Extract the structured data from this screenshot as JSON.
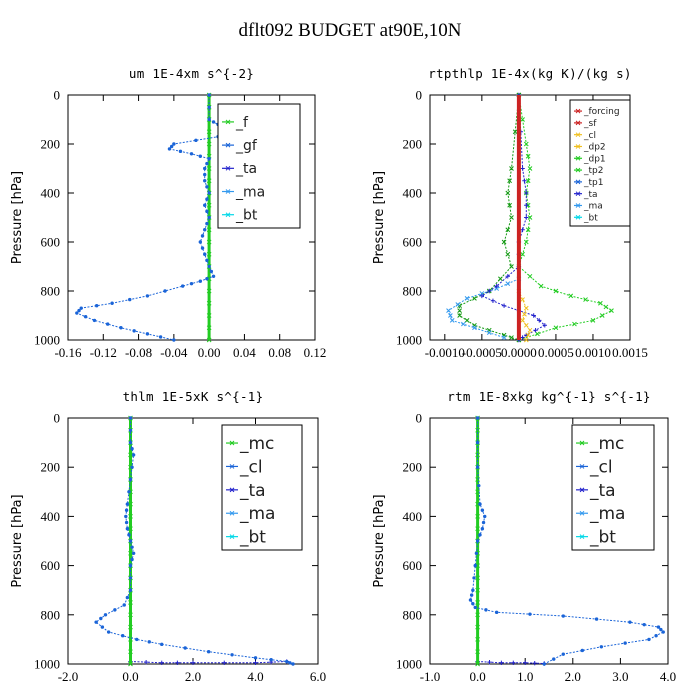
{
  "figure_title": "dflt092  BUDGET at90E,10N",
  "colors": {
    "blue": "#1a64d8",
    "green": "#22cc22",
    "red": "#cc2222",
    "cyan": "#00d8e8",
    "yellow": "#f0c020",
    "purple": "#2222cc",
    "ltblue": "#3399ee",
    "dkgreen": "#119911"
  },
  "chart_data": [
    {
      "type": "line",
      "title": "um   1E-4xm s^{-2}",
      "ylabel": "Pressure [hPa]",
      "xlim": [
        -0.16,
        0.12
      ],
      "ylim": [
        1000,
        0
      ],
      "xticks": [
        -0.16,
        -0.12,
        -0.08,
        -0.04,
        0.0,
        0.04,
        0.08,
        0.12
      ],
      "xtick_labels": [
        "-0.16",
        "-0.12",
        "-0.08",
        "-0.04",
        "0.00",
        "0.04",
        "0.08",
        "0.12"
      ],
      "yticks": [
        0,
        200,
        400,
        600,
        800,
        1000
      ],
      "ytick_labels": [
        "0",
        "200",
        "400",
        "600",
        "800",
        "1000"
      ],
      "legend_font": 14,
      "legend": [
        {
          "label": "_f",
          "color": "green"
        },
        {
          "label": "_gf",
          "color": "blue"
        },
        {
          "label": "_ta",
          "color": "purple"
        },
        {
          "label": "_ma",
          "color": "ltblue"
        },
        {
          "label": "_bt",
          "color": "cyan"
        }
      ],
      "series": [
        {
          "color": "green",
          "width": 3,
          "marker": "x",
          "points": [
            [
              0,
              0
            ],
            [
              0,
              100
            ],
            [
              0,
              200
            ],
            [
              0,
              300
            ],
            [
              0,
              400
            ],
            [
              0,
              500
            ],
            [
              0,
              600
            ],
            [
              0,
              700
            ],
            [
              0,
              800
            ],
            [
              0,
              900
            ],
            [
              0,
              1000
            ]
          ]
        },
        {
          "color": "blue",
          "width": 1,
          "marker": "dot",
          "points": [
            [
              0.0,
              0
            ],
            [
              0.0,
              100
            ],
            [
              0.01,
              120
            ],
            [
              0.05,
              130
            ],
            [
              0.09,
              135
            ],
            [
              0.06,
              150
            ],
            [
              0.01,
              170
            ],
            [
              -0.04,
              200
            ],
            [
              -0.045,
              220
            ],
            [
              -0.02,
              240
            ],
            [
              0.0,
              260
            ],
            [
              -0.005,
              300
            ],
            [
              -0.005,
              350
            ],
            [
              0.0,
              400
            ],
            [
              -0.005,
              450
            ],
            [
              0.0,
              500
            ],
            [
              -0.005,
              550
            ],
            [
              -0.01,
              600
            ],
            [
              -0.005,
              650
            ],
            [
              0.0,
              700
            ],
            [
              0.005,
              740
            ],
            [
              -0.01,
              760
            ],
            [
              -0.03,
              780
            ],
            [
              -0.07,
              820
            ],
            [
              -0.11,
              850
            ],
            [
              -0.145,
              870
            ],
            [
              -0.15,
              890
            ],
            [
              -0.13,
              920
            ],
            [
              -0.1,
              950
            ],
            [
              -0.07,
              975
            ],
            [
              -0.04,
              1000
            ]
          ]
        }
      ]
    },
    {
      "type": "line",
      "title": "rtpthlp   1E-4x(kg K)/(kg s)",
      "ylabel": "Pressure [hPa]",
      "xlim": [
        -0.0012,
        0.0015
      ],
      "ylim": [
        1000,
        0
      ],
      "xticks": [
        -0.001,
        -0.0005,
        0.0,
        0.0005,
        0.001,
        0.0015
      ],
      "xtick_labels": [
        "-0.0010",
        "-0.0005",
        "0.0000",
        "0.0005",
        "0.0010",
        "0.0015"
      ],
      "yticks": [
        0,
        200,
        400,
        600,
        800,
        1000
      ],
      "ytick_labels": [
        "0",
        "200",
        "400",
        "600",
        "800",
        "1000"
      ],
      "legend_font": 9,
      "legend": [
        {
          "label": "_forcing",
          "color": "red"
        },
        {
          "label": "_sf",
          "color": "red"
        },
        {
          "label": "_cl",
          "color": "yellow"
        },
        {
          "label": "_dp2",
          "color": "yellow"
        },
        {
          "label": "_dp1",
          "color": "green"
        },
        {
          "label": "_tp2",
          "color": "green"
        },
        {
          "label": "_tp1",
          "color": "blue"
        },
        {
          "label": "_ta",
          "color": "purple"
        },
        {
          "label": "_ma",
          "color": "ltblue"
        },
        {
          "label": "_bt",
          "color": "cyan"
        }
      ],
      "series": [
        {
          "color": "green",
          "width": 1,
          "marker": "x",
          "points": [
            [
              0.0,
              0
            ],
            [
              0.0001,
              200
            ],
            [
              0.00015,
              300
            ],
            [
              0.0001,
              400
            ],
            [
              0.00015,
              500
            ],
            [
              0.0001,
              600
            ],
            [
              0.0,
              700
            ],
            [
              0.0003,
              780
            ],
            [
              0.0007,
              820
            ],
            [
              0.0011,
              850
            ],
            [
              0.00125,
              880
            ],
            [
              0.001,
              920
            ],
            [
              0.0005,
              950
            ],
            [
              0.0,
              1000
            ]
          ]
        },
        {
          "color": "dkgreen",
          "width": 1,
          "marker": "x",
          "points": [
            [
              0.0,
              0
            ],
            [
              -0.0001,
              300
            ],
            [
              -0.00015,
              400
            ],
            [
              -0.0001,
              500
            ],
            [
              -0.0002,
              600
            ],
            [
              -0.0001,
              700
            ],
            [
              -0.0004,
              800
            ],
            [
              -0.0008,
              860
            ],
            [
              -0.0008,
              900
            ],
            [
              -0.0006,
              940
            ],
            [
              -0.0002,
              980
            ],
            [
              0.0,
              1000
            ]
          ]
        },
        {
          "color": "ltblue",
          "width": 1,
          "marker": "x",
          "points": [
            [
              0.0,
              750
            ],
            [
              -0.0003,
              790
            ],
            [
              -0.0007,
              830
            ],
            [
              -0.00095,
              880
            ],
            [
              -0.0009,
              920
            ],
            [
              -0.0006,
              950
            ],
            [
              -0.0002,
              990
            ]
          ]
        },
        {
          "color": "purple",
          "width": 1,
          "marker": "plus",
          "points": [
            [
              0.0,
              0
            ],
            [
              5e-05,
              300
            ],
            [
              0.0001,
              400
            ],
            [
              0.0001,
              500
            ],
            [
              0.0,
              600
            ],
            [
              0.0,
              700
            ],
            [
              -0.0003,
              780
            ],
            [
              -0.0005,
              820
            ],
            [
              -0.0002,
              860
            ],
            [
              0.0002,
              900
            ],
            [
              0.00035,
              940
            ],
            [
              0.0001,
              980
            ],
            [
              0.0,
              1000
            ]
          ]
        },
        {
          "color": "yellow",
          "width": 1,
          "marker": "x",
          "points": [
            [
              0.0,
              800
            ],
            [
              0.0001,
              870
            ],
            [
              5e-05,
              920
            ],
            [
              0.00015,
              960
            ],
            [
              0.0001,
              1000
            ]
          ]
        },
        {
          "color": "red",
          "width": 4,
          "marker": "none",
          "points": [
            [
              0,
              0
            ],
            [
              0,
              1000
            ]
          ]
        }
      ]
    },
    {
      "type": "line",
      "title": "thlm   1E-5xK s^{-1}",
      "ylabel": "Pressure [hPa]",
      "xlim": [
        -2.0,
        6.0
      ],
      "ylim": [
        1000,
        0
      ],
      "xticks": [
        -2.0,
        0.0,
        2.0,
        4.0,
        6.0
      ],
      "xtick_labels": [
        "-2.0",
        "0.0",
        "2.0",
        "4.0",
        "6.0"
      ],
      "yticks": [
        0,
        200,
        400,
        600,
        800,
        1000
      ],
      "ytick_labels": [
        "0",
        "200",
        "400",
        "600",
        "800",
        "1000"
      ],
      "legend_font": 17,
      "legend": [
        {
          "label": "_mc",
          "color": "green"
        },
        {
          "label": "_cl",
          "color": "blue"
        },
        {
          "label": "_ta",
          "color": "purple"
        },
        {
          "label": "_ma",
          "color": "ltblue"
        },
        {
          "label": "_bt",
          "color": "cyan"
        }
      ],
      "series": [
        {
          "color": "purple",
          "width": 1,
          "marker": "plus",
          "points": [
            [
              0,
              990
            ],
            [
              1.0,
              995
            ],
            [
              2.0,
              995
            ],
            [
              4.0,
              995
            ],
            [
              5.0,
              990
            ]
          ]
        },
        {
          "color": "green",
          "width": 3,
          "marker": "x",
          "points": [
            [
              0,
              0
            ],
            [
              0,
              100
            ],
            [
              0,
              200
            ],
            [
              0,
              300
            ],
            [
              0,
              400
            ],
            [
              0,
              500
            ],
            [
              0,
              600
            ],
            [
              0,
              700
            ],
            [
              0,
              800
            ],
            [
              0,
              900
            ],
            [
              0,
              1000
            ]
          ]
        },
        {
          "color": "blue",
          "width": 1,
          "marker": "dot",
          "points": [
            [
              0.0,
              0
            ],
            [
              0.0,
              100
            ],
            [
              0.1,
              150
            ],
            [
              0.0,
              250
            ],
            [
              -0.1,
              350
            ],
            [
              -0.15,
              400
            ],
            [
              -0.1,
              450
            ],
            [
              0.0,
              500
            ],
            [
              0.1,
              550
            ],
            [
              0.0,
              600
            ],
            [
              0.0,
              700
            ],
            [
              -0.2,
              760
            ],
            [
              -0.8,
              800
            ],
            [
              -1.1,
              830
            ],
            [
              -0.7,
              870
            ],
            [
              0.2,
              900
            ],
            [
              1.0,
              920
            ],
            [
              2.5,
              950
            ],
            [
              4.0,
              975
            ],
            [
              5.0,
              990
            ],
            [
              5.2,
              1000
            ]
          ]
        }
      ]
    },
    {
      "type": "line",
      "title": "rtm   1E-8xkg kg^{-1} s^{-1}",
      "ylabel": "Pressure [hPa]",
      "xlim": [
        -1.0,
        4.0
      ],
      "ylim": [
        1000,
        0
      ],
      "xticks": [
        -1.0,
        0.0,
        1.0,
        2.0,
        3.0,
        4.0
      ],
      "xtick_labels": [
        "-1.0",
        "0.0",
        "1.0",
        "2.0",
        "3.0",
        "4.0"
      ],
      "yticks": [
        0,
        200,
        400,
        600,
        800,
        1000
      ],
      "ytick_labels": [
        "0",
        "200",
        "400",
        "600",
        "800",
        "1000"
      ],
      "legend_font": 17,
      "legend": [
        {
          "label": "_mc",
          "color": "green"
        },
        {
          "label": "_cl",
          "color": "blue"
        },
        {
          "label": "_ta",
          "color": "purple"
        },
        {
          "label": "_ma",
          "color": "ltblue"
        },
        {
          "label": "_bt",
          "color": "cyan"
        }
      ],
      "series": [
        {
          "color": "purple",
          "width": 1,
          "marker": "plus",
          "points": [
            [
              0,
              990
            ],
            [
              0.5,
              995
            ],
            [
              1.0,
              995
            ],
            [
              1.4,
              998
            ]
          ]
        },
        {
          "color": "green",
          "width": 3,
          "marker": "x",
          "points": [
            [
              0,
              0
            ],
            [
              0,
              100
            ],
            [
              0,
              200
            ],
            [
              0,
              300
            ],
            [
              0,
              400
            ],
            [
              0,
              500
            ],
            [
              0,
              600
            ],
            [
              0,
              700
            ],
            [
              0,
              800
            ],
            [
              0,
              900
            ],
            [
              0,
              1000
            ]
          ]
        },
        {
          "color": "blue",
          "width": 1,
          "marker": "dot",
          "points": [
            [
              0.0,
              0
            ],
            [
              0.0,
              200
            ],
            [
              0.05,
              350
            ],
            [
              0.15,
              400
            ],
            [
              0.1,
              450
            ],
            [
              0.0,
              500
            ],
            [
              -0.05,
              600
            ],
            [
              -0.1,
              700
            ],
            [
              -0.15,
              740
            ],
            [
              -0.05,
              770
            ],
            [
              0.4,
              790
            ],
            [
              1.8,
              805
            ],
            [
              3.2,
              830
            ],
            [
              3.8,
              850
            ],
            [
              3.9,
              870
            ],
            [
              3.6,
              900
            ],
            [
              2.6,
              930
            ],
            [
              1.8,
              960
            ],
            [
              1.4,
              1000
            ]
          ]
        }
      ]
    }
  ]
}
